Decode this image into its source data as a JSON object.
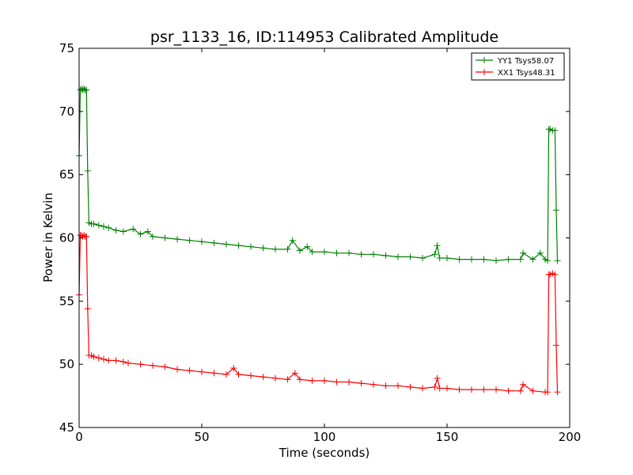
{
  "chart_data": {
    "type": "line",
    "title": "psr_1133_16, ID:114953 Calibrated Amplitude",
    "xlabel": "Time (seconds)",
    "ylabel": "Power in Kelvin",
    "xlim": [
      0,
      200
    ],
    "ylim": [
      45,
      75
    ],
    "xticks": [
      0,
      50,
      100,
      150,
      200
    ],
    "yticks": [
      45,
      50,
      55,
      60,
      65,
      70,
      75
    ],
    "grid": false,
    "legend_position": "top-right",
    "marker": "+",
    "series": [
      {
        "name": "YY1 Tsys58.07",
        "color": "#008000",
        "points": [
          [
            0.0,
            66.5
          ],
          [
            0.5,
            71.7
          ],
          [
            1.0,
            71.8
          ],
          [
            1.5,
            71.7
          ],
          [
            2.0,
            71.8
          ],
          [
            2.5,
            71.7
          ],
          [
            3.0,
            71.7
          ],
          [
            3.5,
            65.3
          ],
          [
            4.0,
            61.2
          ],
          [
            5.0,
            61.1
          ],
          [
            6.0,
            61.1
          ],
          [
            8.0,
            61.0
          ],
          [
            10.0,
            60.9
          ],
          [
            12.0,
            60.8
          ],
          [
            15.0,
            60.6
          ],
          [
            18.0,
            60.5
          ],
          [
            22.0,
            60.7
          ],
          [
            25.0,
            60.3
          ],
          [
            28.0,
            60.5
          ],
          [
            30.0,
            60.1
          ],
          [
            35.0,
            60.0
          ],
          [
            40.0,
            59.9
          ],
          [
            45.0,
            59.8
          ],
          [
            50.0,
            59.7
          ],
          [
            55.0,
            59.6
          ],
          [
            60.0,
            59.5
          ],
          [
            65.0,
            59.4
          ],
          [
            70.0,
            59.3
          ],
          [
            75.0,
            59.2
          ],
          [
            80.0,
            59.1
          ],
          [
            85.0,
            59.1
          ],
          [
            87.0,
            59.8
          ],
          [
            90.0,
            59.0
          ],
          [
            93.0,
            59.3
          ],
          [
            95.0,
            58.9
          ],
          [
            100.0,
            58.9
          ],
          [
            105.0,
            58.8
          ],
          [
            110.0,
            58.8
          ],
          [
            115.0,
            58.7
          ],
          [
            120.0,
            58.7
          ],
          [
            125.0,
            58.6
          ],
          [
            130.0,
            58.5
          ],
          [
            135.0,
            58.5
          ],
          [
            140.0,
            58.4
          ],
          [
            145.0,
            58.7
          ],
          [
            146.0,
            59.4
          ],
          [
            147.0,
            58.4
          ],
          [
            150.0,
            58.4
          ],
          [
            155.0,
            58.3
          ],
          [
            160.0,
            58.3
          ],
          [
            165.0,
            58.3
          ],
          [
            170.0,
            58.2
          ],
          [
            175.0,
            58.3
          ],
          [
            180.0,
            58.3
          ],
          [
            181.0,
            58.8
          ],
          [
            185.0,
            58.3
          ],
          [
            188.0,
            58.8
          ],
          [
            190.0,
            58.3
          ],
          [
            191.0,
            58.2
          ],
          [
            191.5,
            68.6
          ],
          [
            192.0,
            68.6
          ],
          [
            193.0,
            68.5
          ],
          [
            194.0,
            68.5
          ],
          [
            194.5,
            62.2
          ],
          [
            195.0,
            58.2
          ]
        ]
      },
      {
        "name": "XX1 Tsys48.31",
        "color": "#ff0000",
        "points": [
          [
            0.0,
            55.5
          ],
          [
            0.5,
            60.2
          ],
          [
            1.0,
            60.2
          ],
          [
            1.5,
            60.1
          ],
          [
            2.0,
            60.2
          ],
          [
            2.5,
            60.1
          ],
          [
            3.0,
            60.1
          ],
          [
            3.5,
            54.4
          ],
          [
            4.0,
            50.7
          ],
          [
            5.0,
            50.7
          ],
          [
            6.0,
            50.6
          ],
          [
            8.0,
            50.5
          ],
          [
            10.0,
            50.4
          ],
          [
            12.0,
            50.3
          ],
          [
            15.0,
            50.3
          ],
          [
            18.0,
            50.2
          ],
          [
            20.0,
            50.1
          ],
          [
            25.0,
            50.0
          ],
          [
            30.0,
            49.9
          ],
          [
            35.0,
            49.8
          ],
          [
            40.0,
            49.6
          ],
          [
            45.0,
            49.5
          ],
          [
            50.0,
            49.4
          ],
          [
            55.0,
            49.3
          ],
          [
            60.0,
            49.2
          ],
          [
            63.0,
            49.7
          ],
          [
            65.0,
            49.2
          ],
          [
            70.0,
            49.1
          ],
          [
            75.0,
            49.0
          ],
          [
            80.0,
            48.9
          ],
          [
            85.0,
            48.8
          ],
          [
            88.0,
            49.3
          ],
          [
            90.0,
            48.8
          ],
          [
            95.0,
            48.7
          ],
          [
            100.0,
            48.7
          ],
          [
            105.0,
            48.6
          ],
          [
            110.0,
            48.6
          ],
          [
            115.0,
            48.5
          ],
          [
            120.0,
            48.4
          ],
          [
            125.0,
            48.3
          ],
          [
            130.0,
            48.3
          ],
          [
            135.0,
            48.2
          ],
          [
            140.0,
            48.1
          ],
          [
            145.0,
            48.2
          ],
          [
            146.0,
            48.9
          ],
          [
            147.0,
            48.1
          ],
          [
            150.0,
            48.1
          ],
          [
            155.0,
            48.0
          ],
          [
            160.0,
            48.0
          ],
          [
            165.0,
            48.0
          ],
          [
            170.0,
            48.0
          ],
          [
            175.0,
            47.9
          ],
          [
            180.0,
            47.9
          ],
          [
            181.0,
            48.4
          ],
          [
            185.0,
            47.9
          ],
          [
            190.0,
            47.8
          ],
          [
            191.0,
            47.8
          ],
          [
            191.5,
            57.1
          ],
          [
            192.0,
            57.1
          ],
          [
            193.0,
            57.2
          ],
          [
            194.0,
            57.1
          ],
          [
            194.5,
            51.5
          ],
          [
            195.0,
            47.8
          ]
        ]
      }
    ]
  }
}
